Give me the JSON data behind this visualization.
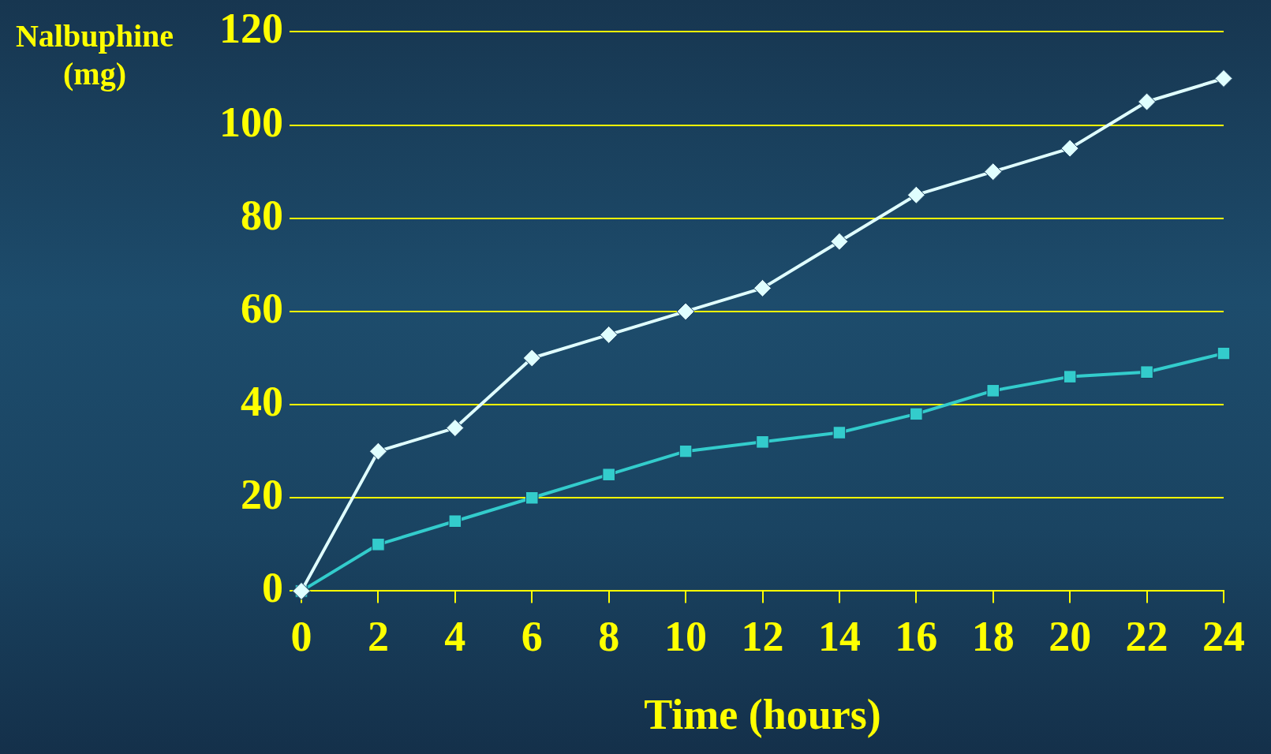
{
  "chart_data": {
    "type": "line",
    "ylabel": "Nalbuphine\n(mg)",
    "xlabel": "Time (hours)",
    "x": [
      0,
      2,
      4,
      6,
      8,
      10,
      12,
      14,
      16,
      18,
      20,
      22,
      24
    ],
    "series": [
      {
        "color": "#e0ffff",
        "marker": "diamond",
        "values": [
          0,
          30,
          35,
          50,
          55,
          60,
          65,
          75,
          85,
          90,
          95,
          105,
          110
        ]
      },
      {
        "color": "#33cccc",
        "marker": "square",
        "values": [
          0,
          10,
          15,
          20,
          25,
          30,
          32,
          34,
          38,
          43,
          46,
          47,
          51
        ]
      }
    ],
    "xlim": [
      0,
      24
    ],
    "xticks": [
      0,
      2,
      4,
      6,
      8,
      10,
      12,
      14,
      16,
      18,
      20,
      22,
      24
    ],
    "ylim": [
      0,
      120
    ],
    "yticks": [
      0,
      20,
      40,
      60,
      80,
      100,
      120
    ],
    "grid": "y",
    "legend": false,
    "line_style": "solid"
  }
}
